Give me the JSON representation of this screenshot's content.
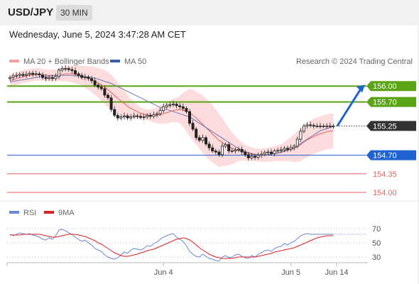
{
  "header": {
    "symbol": "USD/JPY",
    "timeframe": "30 MIN",
    "datetime": "Wednesday, June 5, 2024 3:47:28 AM CET"
  },
  "legend": {
    "ma20": "MA 20 + Bollinger Bands",
    "ma50": "MA 50",
    "credit": "Research © 2024 Trading Central",
    "rsi": "RSI",
    "ma9": "9MA"
  },
  "colors": {
    "green": "#5aa514",
    "blue": "#1f63d2",
    "red": "#e86060",
    "candle": "#222222",
    "band": "#fbd3d3",
    "ma50": "#6d78b4",
    "rsi": "#6b86d8",
    "ma9": "#d92323",
    "price_tag": "#333333"
  },
  "chart_data": [
    {
      "type": "candlestick",
      "ylim": [
        153.8,
        156.55
      ],
      "n_bars": 100,
      "levels": [
        {
          "value": 156.0,
          "label": "156.00",
          "kind": "resistance"
        },
        {
          "value": 155.7,
          "label": "155.70",
          "kind": "resistance"
        },
        {
          "value": 154.7,
          "label": "154.70",
          "kind": "pivot"
        },
        {
          "value": 154.35,
          "label": "154.35",
          "kind": "support"
        },
        {
          "value": 154.0,
          "label": "154.00",
          "kind": "support"
        }
      ],
      "last_price": {
        "value": 155.25,
        "label": "155.25"
      },
      "projection": {
        "from": 155.25,
        "to": 156.0
      },
      "close": [
        156.16,
        156.19,
        156.2,
        156.22,
        156.2,
        156.22,
        156.24,
        156.22,
        156.23,
        156.21,
        156.16,
        156.14,
        156.16,
        156.14,
        156.18,
        156.3,
        156.33,
        156.33,
        156.31,
        156.29,
        156.23,
        156.2,
        156.16,
        156.17,
        156.14,
        156.1,
        156.02,
        155.98,
        155.95,
        155.83,
        155.78,
        155.56,
        155.45,
        155.4,
        155.42,
        155.44,
        155.4,
        155.42,
        155.44,
        155.43,
        155.41,
        155.42,
        155.45,
        155.43,
        155.46,
        155.48,
        155.54,
        155.61,
        155.64,
        155.65,
        155.66,
        155.63,
        155.61,
        155.58,
        155.52,
        155.3,
        155.19,
        155.03,
        154.98,
        155.03,
        154.91,
        154.84,
        154.78,
        154.76,
        154.71,
        154.87,
        154.9,
        154.78,
        154.78,
        154.8,
        154.81,
        154.76,
        154.71,
        154.65,
        154.68,
        154.66,
        154.7,
        154.72,
        154.75,
        154.76,
        154.73,
        154.78,
        154.79,
        154.8,
        154.83,
        154.81,
        154.84,
        154.87,
        155.0,
        155.15,
        155.25,
        155.27,
        155.26,
        155.25,
        155.25,
        155.25,
        155.25,
        155.25,
        155.25,
        155.25
      ],
      "ma20": [
        156.1,
        156.12,
        156.14,
        156.16,
        156.18,
        156.19,
        156.2,
        156.21,
        156.22,
        156.22,
        156.21,
        156.21,
        156.2,
        156.2,
        156.2,
        156.21,
        156.22,
        156.23,
        156.23,
        156.23,
        156.22,
        156.21,
        156.19,
        156.17,
        156.15,
        156.12,
        156.09,
        156.06,
        156.02,
        155.98,
        155.93,
        155.88,
        155.82,
        155.77,
        155.72,
        155.67,
        155.62,
        155.58,
        155.55,
        155.52,
        155.49,
        155.47,
        155.46,
        155.45,
        155.45,
        155.45,
        155.46,
        155.48,
        155.5,
        155.52,
        155.54,
        155.55,
        155.56,
        155.55,
        155.53,
        155.5,
        155.45,
        155.4,
        155.34,
        155.28,
        155.22,
        155.16,
        155.1,
        155.04,
        154.98,
        154.94,
        154.9,
        154.86,
        154.83,
        154.81,
        154.79,
        154.77,
        154.75,
        154.73,
        154.72,
        154.71,
        154.7,
        154.7,
        154.7,
        154.71,
        154.72,
        154.73,
        154.74,
        154.75,
        154.77,
        154.79,
        154.81,
        154.83,
        154.86,
        154.9,
        154.95,
        154.99,
        155.02,
        155.05,
        155.08,
        155.1,
        155.12,
        155.14,
        155.15,
        155.16
      ],
      "bb_width": [
        0.12,
        0.12,
        0.12,
        0.12,
        0.12,
        0.12,
        0.12,
        0.12,
        0.12,
        0.12,
        0.11,
        0.11,
        0.11,
        0.11,
        0.11,
        0.12,
        0.13,
        0.14,
        0.15,
        0.16,
        0.17,
        0.18,
        0.19,
        0.2,
        0.22,
        0.24,
        0.26,
        0.28,
        0.3,
        0.32,
        0.33,
        0.33,
        0.33,
        0.3,
        0.27,
        0.24,
        0.21,
        0.18,
        0.15,
        0.13,
        0.11,
        0.1,
        0.1,
        0.11,
        0.13,
        0.15,
        0.17,
        0.19,
        0.2,
        0.21,
        0.22,
        0.23,
        0.26,
        0.32,
        0.38,
        0.44,
        0.48,
        0.5,
        0.52,
        0.54,
        0.55,
        0.55,
        0.54,
        0.52,
        0.5,
        0.45,
        0.4,
        0.35,
        0.3,
        0.25,
        0.2,
        0.17,
        0.15,
        0.14,
        0.13,
        0.12,
        0.12,
        0.12,
        0.13,
        0.13,
        0.14,
        0.14,
        0.15,
        0.16,
        0.18,
        0.2,
        0.23,
        0.26,
        0.29,
        0.31,
        0.32,
        0.33,
        0.33,
        0.33,
        0.33,
        0.33,
        0.33,
        0.33,
        0.33,
        0.33
      ],
      "ma50": [
        156.08,
        156.09,
        156.1,
        156.11,
        156.12,
        156.13,
        156.14,
        156.15,
        156.16,
        156.17,
        156.18,
        156.18,
        156.19,
        156.19,
        156.2,
        156.2,
        156.2,
        156.2,
        156.2,
        156.2,
        156.19,
        156.19,
        156.18,
        156.18,
        156.17,
        156.16,
        156.15,
        156.13,
        156.11,
        156.09,
        156.07,
        156.05,
        156.02,
        155.99,
        155.96,
        155.93,
        155.9,
        155.87,
        155.84,
        155.81,
        155.78,
        155.75,
        155.72,
        155.69,
        155.66,
        155.63,
        155.6,
        155.58,
        155.56,
        155.54,
        155.52,
        155.5,
        155.48,
        155.46,
        155.44,
        155.42,
        155.38,
        155.34,
        155.3,
        155.26,
        155.22,
        155.18,
        155.14,
        155.1,
        155.06,
        155.02,
        154.98,
        154.94,
        154.9,
        154.86,
        154.83,
        154.8,
        154.77,
        154.75,
        154.73,
        154.72,
        154.71,
        154.7,
        154.7,
        154.71,
        154.72,
        154.73,
        154.74,
        154.76,
        154.78,
        154.8,
        154.82,
        154.85,
        154.88,
        154.92,
        154.96,
        155.0,
        155.04,
        155.08,
        155.12,
        155.16,
        155.18,
        155.2,
        155.22,
        155.24
      ]
    },
    {
      "type": "line",
      "title": "RSI",
      "ylim": [
        20,
        80
      ],
      "yticks": [
        70,
        50,
        30
      ],
      "xtick_labels": [
        {
          "index": 47,
          "label": "Jun 4"
        },
        {
          "index": 86,
          "label": "Jun 5"
        },
        {
          "index": 100,
          "label": "Jun 14"
        }
      ],
      "series": [
        {
          "name": "RSI",
          "values": [
            62,
            60,
            62,
            64,
            63,
            62,
            63,
            61,
            60,
            58,
            55,
            54,
            57,
            55,
            60,
            68,
            69,
            67,
            64,
            62,
            58,
            55,
            52,
            54,
            50,
            47,
            42,
            40,
            38,
            33,
            30,
            28,
            27,
            29,
            33,
            37,
            35,
            40,
            42,
            41,
            40,
            42,
            46,
            45,
            49,
            51,
            55,
            58,
            60,
            62,
            63,
            58,
            55,
            52,
            46,
            38,
            34,
            31,
            30,
            34,
            31,
            28,
            27,
            25,
            24,
            30,
            32,
            29,
            30,
            33,
            34,
            31,
            29,
            28,
            32,
            30,
            34,
            36,
            39,
            40,
            38,
            42,
            44,
            45,
            49,
            47,
            50,
            52,
            56,
            60,
            62,
            63,
            62,
            62,
            62,
            62,
            62,
            62,
            62,
            62
          ]
        },
        {
          "name": "9MA",
          "values": [
            61,
            61,
            61,
            61,
            62,
            62,
            62,
            62,
            62,
            62,
            61,
            60,
            59,
            58,
            58,
            59,
            60,
            61,
            62,
            62,
            62,
            61,
            60,
            59,
            57,
            55,
            53,
            50,
            48,
            45,
            42,
            39,
            36,
            34,
            32,
            31,
            31,
            32,
            33,
            34,
            36,
            37,
            39,
            40,
            41,
            43,
            45,
            47,
            49,
            51,
            53,
            55,
            56,
            57,
            56,
            54,
            51,
            47,
            43,
            40,
            37,
            34,
            32,
            30,
            29,
            28,
            28,
            28,
            28,
            29,
            30,
            30,
            30,
            30,
            30,
            30,
            31,
            32,
            33,
            34,
            35,
            37,
            38,
            39,
            40,
            41,
            42,
            43,
            45,
            47,
            49,
            51,
            53,
            55,
            57,
            58,
            59,
            60,
            60,
            60
          ]
        }
      ]
    }
  ]
}
